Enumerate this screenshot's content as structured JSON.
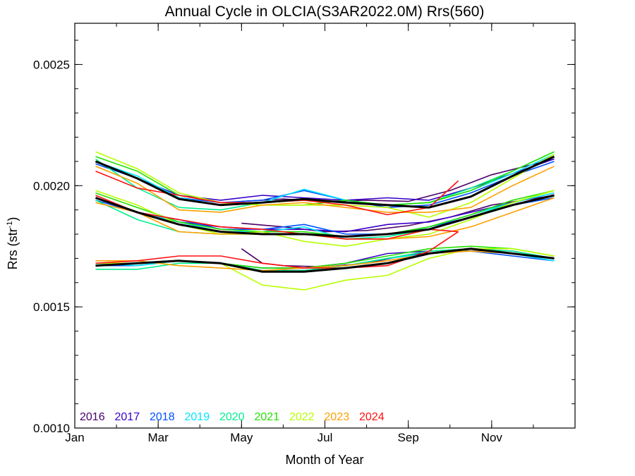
{
  "chart_data": {
    "type": "line",
    "title": "Annual Cycle in OLCIA(S3AR2022.0M) Rrs(560)",
    "xlabel": "Month of Year",
    "ylabel_main": "Rrs (str",
    "ylabel_sup": "-1",
    "ylabel_close": ")",
    "xlim": [
      1,
      13
    ],
    "ylim": [
      0.001,
      0.00267
    ],
    "x_ticks": [
      {
        "value": 1,
        "label": "Jan"
      },
      {
        "value": 3,
        "label": "Mar"
      },
      {
        "value": 5,
        "label": "May"
      },
      {
        "value": 7,
        "label": "Jul"
      },
      {
        "value": 9,
        "label": "Sep"
      },
      {
        "value": 11,
        "label": "Nov"
      }
    ],
    "y_ticks": [
      {
        "value": 0.001,
        "label": "0.0010"
      },
      {
        "value": 0.0015,
        "label": "0.0015"
      },
      {
        "value": 0.002,
        "label": "0.0020"
      },
      {
        "value": 0.0025,
        "label": "0.0025"
      }
    ],
    "x_minor_step": 1,
    "y_minor_step": 0.0001,
    "legend": {
      "placement": "bottom-left",
      "entries": [
        {
          "label": "2016",
          "color": "#4b0068"
        },
        {
          "label": "2017",
          "color": "#3a00c8"
        },
        {
          "label": "2018",
          "color": "#0050ff"
        },
        {
          "label": "2019",
          "color": "#00e6ff"
        },
        {
          "label": "2020",
          "color": "#00f090"
        },
        {
          "label": "2021",
          "color": "#22e000"
        },
        {
          "label": "2022",
          "color": "#b8ff00"
        },
        {
          "label": "2023",
          "color": "#ffa000"
        },
        {
          "label": "2024",
          "color": "#ff1010"
        }
      ]
    },
    "series": [
      {
        "year": "2016",
        "color": "#4b0068",
        "band": "upper",
        "x": [
          5,
          6,
          7,
          8,
          9,
          10,
          11,
          12.5
        ],
        "y": [
          0.001935,
          0.001945,
          0.001935,
          0.00194,
          0.001935,
          0.00198,
          0.002045,
          0.00211
        ]
      },
      {
        "year": "2016",
        "color": "#4b0068",
        "band": "middle",
        "x": [
          5,
          6,
          7,
          8,
          9,
          10,
          11,
          12.5
        ],
        "y": [
          0.001845,
          0.00183,
          0.00181,
          0.001815,
          0.001835,
          0.00187,
          0.00192,
          0.00196
        ]
      },
      {
        "year": "2016",
        "color": "#4b0068",
        "band": "lower",
        "x": [
          5,
          5.5,
          6,
          7,
          8,
          9,
          10,
          11,
          12.5
        ],
        "y": [
          0.00174,
          0.00168,
          0.00167,
          0.001665,
          0.00168,
          0.001715,
          0.00173,
          0.00173,
          0.0017
        ]
      },
      {
        "year": "2017",
        "color": "#3a00c8",
        "band": "upper",
        "x": [
          1.5,
          2.5,
          3.5,
          4.5,
          5.5,
          6.5,
          7.5,
          8.5,
          9.5,
          10.5,
          11.5,
          12.5
        ],
        "y": [
          0.0021,
          0.00203,
          0.00196,
          0.00194,
          0.00196,
          0.00195,
          0.00194,
          0.00195,
          0.00194,
          0.00199,
          0.00205,
          0.00211
        ]
      },
      {
        "year": "2017",
        "color": "#3a00c8",
        "band": "middle",
        "x": [
          1.5,
          2.5,
          3.5,
          4.5,
          5.5,
          6.5,
          7.5,
          8.5,
          9.5,
          10.5,
          11.5,
          12.5
        ],
        "y": [
          0.00195,
          0.00189,
          0.00185,
          0.00183,
          0.00182,
          0.00182,
          0.00181,
          0.00184,
          0.00185,
          0.00189,
          0.00193,
          0.00197
        ]
      },
      {
        "year": "2017",
        "color": "#3a00c8",
        "band": "lower",
        "x": [
          1.5,
          2.5,
          3.5,
          4.5,
          5.5,
          6.5,
          7.5,
          8.5,
          9.5,
          10.5,
          11.5,
          12.5
        ],
        "y": [
          0.00168,
          0.00168,
          0.00169,
          0.00168,
          0.00166,
          0.00166,
          0.00168,
          0.00172,
          0.00173,
          0.00174,
          0.00173,
          0.0017
        ]
      },
      {
        "year": "2018",
        "color": "#0050ff",
        "band": "upper",
        "x": [
          1.5,
          2.5,
          3.5,
          4.5,
          5.5,
          6.5,
          7.5,
          8.5,
          9.5,
          10.5,
          11.5,
          12.5
        ],
        "y": [
          0.00209,
          0.00203,
          0.00195,
          0.00193,
          0.00194,
          0.00198,
          0.00194,
          0.00191,
          0.00192,
          0.00197,
          0.00204,
          0.0021
        ]
      },
      {
        "year": "2018",
        "color": "#0050ff",
        "band": "middle",
        "x": [
          1.5,
          2.5,
          3.5,
          4.5,
          5.5,
          6.5,
          7.5,
          8.5,
          9.5,
          10.5,
          11.5,
          12.5
        ],
        "y": [
          0.00194,
          0.00189,
          0.00186,
          0.00182,
          0.00182,
          0.00184,
          0.0018,
          0.0018,
          0.00183,
          0.00187,
          0.00192,
          0.00195
        ]
      },
      {
        "year": "2018",
        "color": "#0050ff",
        "band": "lower",
        "x": [
          1.5,
          2.5,
          3.5,
          4.5,
          5.5,
          6.5,
          7.5,
          8.5,
          9.5,
          10.5,
          11.5,
          12.5
        ],
        "y": [
          0.00167,
          0.00167,
          0.00169,
          0.00168,
          0.00165,
          0.00165,
          0.00167,
          0.0017,
          0.00172,
          0.00173,
          0.00171,
          0.00169
        ]
      },
      {
        "year": "2019",
        "color": "#00e6ff",
        "band": "upper",
        "x": [
          1.5,
          2.5,
          3.5,
          4.5,
          5.5,
          6.5,
          7.5,
          8.5,
          9.5,
          10.5,
          11.5,
          12.5
        ],
        "y": [
          0.0021,
          0.00204,
          0.00195,
          0.00192,
          0.00193,
          0.001985,
          0.00194,
          0.00192,
          0.00193,
          0.00198,
          0.00205,
          0.00213
        ]
      },
      {
        "year": "2019",
        "color": "#00e6ff",
        "band": "middle",
        "x": [
          1.5,
          2.5,
          3.5,
          4.5,
          5.5,
          6.5,
          7.5,
          8.5,
          9.5,
          10.5,
          11.5,
          12.5
        ],
        "y": [
          0.00195,
          0.00189,
          0.00185,
          0.00181,
          0.00181,
          0.00183,
          0.00178,
          0.00179,
          0.00183,
          0.00188,
          0.00193,
          0.00197
        ]
      },
      {
        "year": "2019",
        "color": "#00e6ff",
        "band": "lower",
        "x": [
          1.5,
          2.5,
          3.5,
          4.5,
          5.5,
          6.5,
          7.5,
          8.5,
          9.5,
          10.5,
          11.5,
          12.5
        ],
        "y": [
          0.00168,
          0.00167,
          0.00169,
          0.00168,
          0.00166,
          0.00166,
          0.00167,
          0.0017,
          0.00172,
          0.00173,
          0.00172,
          0.00169
        ]
      },
      {
        "year": "2020",
        "color": "#00f090",
        "band": "upper",
        "x": [
          1.5,
          2.5,
          3.5,
          4.5,
          5.5,
          6.5,
          7.5,
          8.5,
          9.5,
          10.5,
          11.5,
          12.5
        ],
        "y": [
          0.00211,
          0.00199,
          0.00191,
          0.0019,
          0.00193,
          0.00194,
          0.00193,
          0.00192,
          0.00193,
          0.00199,
          0.00206,
          0.00214
        ]
      },
      {
        "year": "2020",
        "color": "#00f090",
        "band": "middle",
        "x": [
          1.5,
          2.5,
          3.5,
          4.5,
          5.5,
          6.5,
          7.5,
          8.5,
          9.5,
          10.5,
          11.5,
          12.5
        ],
        "y": [
          0.00194,
          0.00186,
          0.00181,
          0.0018,
          0.0018,
          0.0018,
          0.00178,
          0.00179,
          0.00182,
          0.00187,
          0.00193,
          0.00198
        ]
      },
      {
        "year": "2020",
        "color": "#00f090",
        "band": "lower",
        "x": [
          1.5,
          2.5,
          3.5,
          4.5,
          5.5,
          6.5,
          7.5,
          8.5,
          9.5,
          10.5,
          11.5,
          12.5
        ],
        "y": [
          0.001655,
          0.001655,
          0.00168,
          0.00168,
          0.00165,
          0.00165,
          0.00167,
          0.0017,
          0.00173,
          0.00174,
          0.00173,
          0.0017
        ]
      },
      {
        "year": "2021",
        "color": "#22e000",
        "band": "upper",
        "x": [
          1.5,
          2.5,
          3.5,
          4.5,
          5.5,
          6.5,
          7.5,
          8.5,
          9.5,
          10.5,
          11.5,
          12.5
        ],
        "y": [
          0.00212,
          0.00206,
          0.00196,
          0.00193,
          0.00192,
          0.00192,
          0.00194,
          0.00192,
          0.00193,
          0.00198,
          0.00206,
          0.00214
        ]
      },
      {
        "year": "2021",
        "color": "#22e000",
        "band": "middle",
        "x": [
          1.5,
          2.5,
          3.5,
          4.5,
          5.5,
          6.5,
          7.5,
          8.5,
          9.5,
          10.5,
          11.5,
          12.5
        ],
        "y": [
          0.00197,
          0.00191,
          0.00185,
          0.00182,
          0.00181,
          0.00181,
          0.00179,
          0.0018,
          0.00183,
          0.00188,
          0.00194,
          0.00198
        ]
      },
      {
        "year": "2021",
        "color": "#22e000",
        "band": "lower",
        "x": [
          1.5,
          2.5,
          3.5,
          4.5,
          5.5,
          6.5,
          7.5,
          8.5,
          9.5,
          10.5,
          11.5,
          12.5
        ],
        "y": [
          0.00168,
          0.00168,
          0.00169,
          0.00168,
          0.00166,
          0.00166,
          0.00168,
          0.00171,
          0.00174,
          0.00175,
          0.00174,
          0.00171
        ]
      },
      {
        "year": "2022",
        "color": "#b8ff00",
        "band": "upper",
        "x": [
          1.5,
          2.5,
          3.5,
          4.5,
          5.5,
          6.5,
          7.5,
          8.5,
          9.5,
          10.5,
          11.5,
          12.5
        ],
        "y": [
          0.00214,
          0.00207,
          0.00197,
          0.00193,
          0.00192,
          0.00192,
          0.00192,
          0.00191,
          0.00187,
          0.00193,
          0.00203,
          0.00213
        ]
      },
      {
        "year": "2022",
        "color": "#b8ff00",
        "band": "middle",
        "x": [
          1.5,
          2.5,
          3.5,
          4.5,
          5.5,
          6.5,
          7.5,
          8.5,
          9.5,
          10.5,
          11.5,
          12.5
        ],
        "y": [
          0.00198,
          0.00192,
          0.00184,
          0.0018,
          0.00181,
          0.00177,
          0.00175,
          0.00178,
          0.0018,
          0.00186,
          0.00193,
          0.00198
        ]
      },
      {
        "year": "2022",
        "color": "#b8ff00",
        "band": "lower",
        "x": [
          1.5,
          2.5,
          3.5,
          4.5,
          5.5,
          6.5,
          7.5,
          8.5,
          9.5,
          10.5,
          11.5,
          12.5
        ],
        "y": [
          0.00168,
          0.00168,
          0.00169,
          0.00168,
          0.00159,
          0.00157,
          0.00161,
          0.00163,
          0.0017,
          0.00174,
          0.00174,
          0.00171
        ]
      },
      {
        "year": "2023",
        "color": "#ffa000",
        "band": "upper",
        "x": [
          1.5,
          2.5,
          3.5,
          4.5,
          5.5,
          6.5,
          7.5,
          8.5,
          9.5,
          10.5,
          11.5,
          12.5
        ],
        "y": [
          0.00208,
          0.00201,
          0.0019,
          0.00189,
          0.00192,
          0.00193,
          0.00191,
          0.00189,
          0.00189,
          0.00191,
          0.002,
          0.00208
        ]
      },
      {
        "year": "2023",
        "color": "#ffa000",
        "band": "middle",
        "x": [
          1.5,
          2.5,
          3.5,
          4.5,
          5.5,
          6.5,
          7.5,
          8.5,
          9.5,
          10.5,
          11.5,
          12.5
        ],
        "y": [
          0.00193,
          0.00189,
          0.00181,
          0.0018,
          0.0018,
          0.0018,
          0.00178,
          0.00178,
          0.00179,
          0.00183,
          0.00189,
          0.00195
        ]
      },
      {
        "year": "2023",
        "color": "#ffa000",
        "band": "lower",
        "x": [
          1.5,
          2.5,
          3.5,
          4.5,
          5.5,
          6.5,
          7.5,
          8.5,
          9.5,
          10.5,
          11.5,
          12.5
        ],
        "y": [
          0.00169,
          0.00169,
          0.00167,
          0.00166,
          0.00165,
          0.00166,
          0.00167,
          0.00169,
          0.00172,
          0.00173,
          0.00172,
          0.0017
        ]
      },
      {
        "year": "2024",
        "color": "#ff1010",
        "band": "upper",
        "x": [
          1.5,
          2.5,
          3.5,
          4.5,
          5.5,
          6.5,
          7.5,
          8.5,
          9.5,
          10.2
        ],
        "y": [
          0.00206,
          0.00199,
          0.00196,
          0.00193,
          0.00193,
          0.00194,
          0.00192,
          0.00188,
          0.00191,
          0.00202
        ]
      },
      {
        "year": "2024",
        "color": "#ff1010",
        "band": "middle",
        "x": [
          1.5,
          2.5,
          3.5,
          4.5,
          5.5,
          6.5,
          7.5,
          8.5,
          9.5,
          10.2
        ],
        "y": [
          0.00196,
          0.00189,
          0.00186,
          0.00183,
          0.00182,
          0.0018,
          0.00178,
          0.00178,
          0.00182,
          0.00181
        ]
      },
      {
        "year": "2024",
        "color": "#ff1010",
        "band": "lower",
        "x": [
          1.5,
          2.5,
          3.5,
          4.5,
          5.5,
          6.5,
          7.5,
          8.5,
          9.5,
          10.2
        ],
        "y": [
          0.00168,
          0.00169,
          0.00171,
          0.00171,
          0.00168,
          0.00166,
          0.00166,
          0.00167,
          0.00173,
          0.00181
        ]
      }
    ],
    "mean_series": [
      {
        "band": "upper",
        "color": "#000000",
        "x": [
          1.5,
          2.5,
          3.5,
          4.5,
          5.5,
          6.5,
          7.5,
          8.5,
          9.5,
          10.5,
          11.5,
          12.5
        ],
        "y": [
          0.0021,
          0.00203,
          0.001945,
          0.00192,
          0.00193,
          0.001945,
          0.00193,
          0.00192,
          0.00191,
          0.001955,
          0.00204,
          0.00212
        ]
      },
      {
        "band": "middle",
        "color": "#000000",
        "x": [
          1.5,
          2.5,
          3.5,
          4.5,
          5.5,
          6.5,
          7.5,
          8.5,
          9.5,
          10.5,
          11.5,
          12.5
        ],
        "y": [
          0.00195,
          0.00189,
          0.00184,
          0.00181,
          0.0018,
          0.0018,
          0.00179,
          0.0018,
          0.00182,
          0.00187,
          0.00192,
          0.00196
        ]
      },
      {
        "band": "lower",
        "color": "#000000",
        "x": [
          1.5,
          2.5,
          3.5,
          4.5,
          5.5,
          6.5,
          7.5,
          8.5,
          9.5,
          10.5,
          11.5,
          12.5
        ],
        "y": [
          0.00167,
          0.00168,
          0.00169,
          0.00168,
          0.001645,
          0.001645,
          0.00166,
          0.00168,
          0.00172,
          0.00174,
          0.00172,
          0.0017
        ]
      }
    ]
  }
}
